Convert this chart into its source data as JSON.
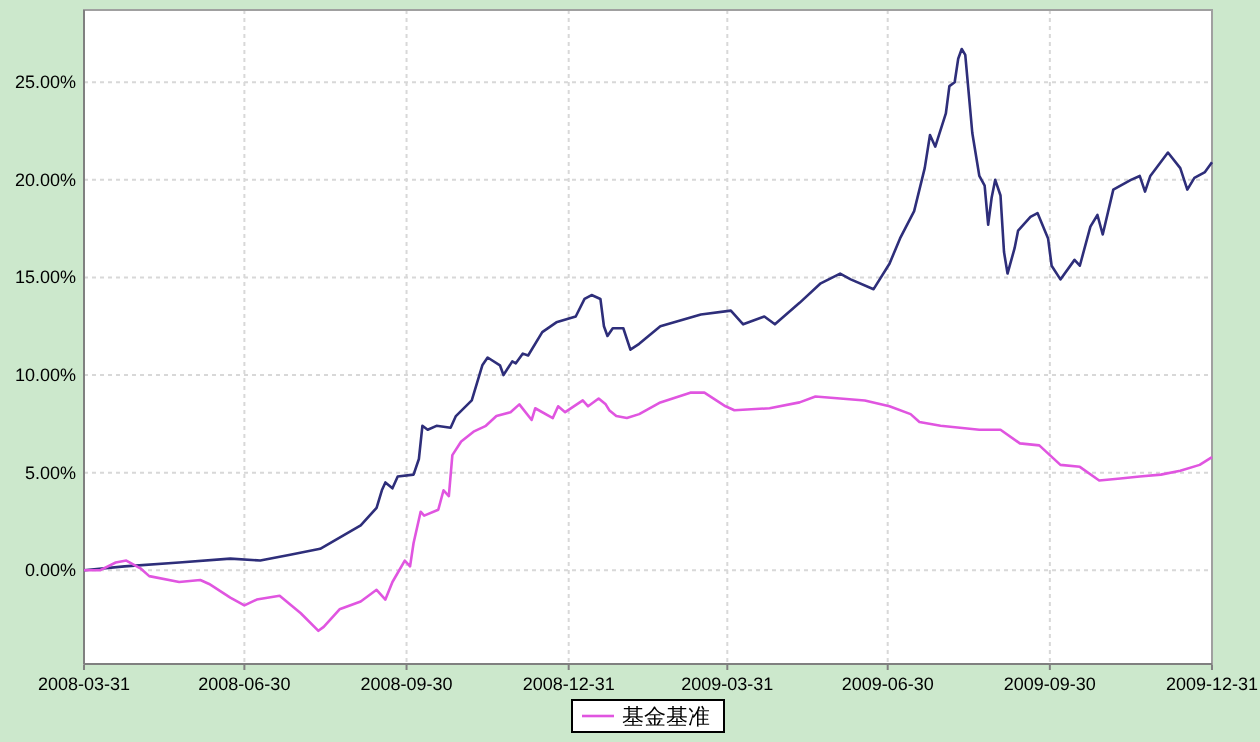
{
  "chart_data": {
    "type": "line",
    "xlim": [
      "2008-03-31",
      "2009-12-31"
    ],
    "ylim": [
      -4.8,
      28.7
    ],
    "xticks": [
      "2008-03-31",
      "2008-06-30",
      "2008-09-30",
      "2008-12-31",
      "2009-03-31",
      "2009-06-30",
      "2009-09-30",
      "2009-12-31"
    ],
    "yticks": [
      {
        "value": 0,
        "label": "0.00%"
      },
      {
        "value": 5,
        "label": "5.00%"
      },
      {
        "value": 10,
        "label": "10.00%"
      },
      {
        "value": 15,
        "label": "15.00%"
      },
      {
        "value": 20,
        "label": "20.00%"
      },
      {
        "value": 25,
        "label": "25.00%"
      }
    ],
    "grid": true,
    "legend": "bottom",
    "line_style": "solid",
    "marker": "none",
    "series": [
      {
        "color": "#2e2e7a",
        "x": [
          "2008-03-31",
          "2008-04-23",
          "2008-05-24",
          "2008-06-22",
          "2008-07-09",
          "2008-07-26",
          "2008-08-12",
          "2008-09-04",
          "2008-09-13",
          "2008-09-16",
          "2008-09-18",
          "2008-09-22",
          "2008-09-25",
          "2008-10-04",
          "2008-10-07",
          "2008-10-09",
          "2008-10-12",
          "2008-10-17",
          "2008-10-25",
          "2008-10-28",
          "2008-11-06",
          "2008-11-12",
          "2008-11-15",
          "2008-11-22",
          "2008-11-24",
          "2008-11-29",
          "2008-12-01",
          "2008-12-05",
          "2008-12-08",
          "2008-12-16",
          "2008-12-24",
          "2009-01-04",
          "2009-01-09",
          "2009-01-13",
          "2009-01-18",
          "2009-01-20",
          "2009-01-22",
          "2009-01-25",
          "2009-01-31",
          "2009-02-04",
          "2009-02-09",
          "2009-02-21",
          "2009-03-16",
          "2009-04-02",
          "2009-04-09",
          "2009-04-21",
          "2009-04-27",
          "2009-05-11",
          "2009-05-23",
          "2009-06-03",
          "2009-06-09",
          "2009-06-22",
          "2009-07-01",
          "2009-07-07",
          "2009-07-15",
          "2009-07-21",
          "2009-07-24",
          "2009-07-27",
          "2009-08-02",
          "2009-08-04",
          "2009-08-07",
          "2009-08-09",
          "2009-08-11",
          "2009-08-13",
          "2009-08-15",
          "2009-08-17",
          "2009-08-21",
          "2009-08-24",
          "2009-08-26",
          "2009-08-28",
          "2009-08-30",
          "2009-09-02",
          "2009-09-04",
          "2009-09-06",
          "2009-09-10",
          "2009-09-12",
          "2009-09-19",
          "2009-09-23",
          "2009-09-29",
          "2009-10-01",
          "2009-10-06",
          "2009-10-14",
          "2009-10-17",
          "2009-10-23",
          "2009-10-27",
          "2009-10-30",
          "2009-11-05",
          "2009-11-15",
          "2009-11-20",
          "2009-11-23",
          "2009-11-26",
          "2009-12-06",
          "2009-12-13",
          "2009-12-17",
          "2009-12-21",
          "2009-12-27",
          "2009-12-31"
        ],
        "values": [
          0.0,
          0.2,
          0.4,
          0.6,
          0.5,
          0.8,
          1.1,
          2.3,
          3.2,
          4.1,
          4.5,
          4.2,
          4.8,
          4.9,
          5.7,
          7.4,
          7.2,
          7.4,
          7.3,
          7.9,
          8.7,
          10.5,
          10.9,
          10.5,
          10.0,
          10.7,
          10.6,
          11.1,
          11.0,
          12.2,
          12.7,
          13.0,
          13.9,
          14.1,
          13.9,
          12.5,
          12.0,
          12.4,
          12.4,
          11.3,
          11.6,
          12.5,
          13.1,
          13.3,
          12.6,
          13.0,
          12.6,
          13.7,
          14.7,
          15.2,
          14.9,
          14.4,
          15.7,
          17.0,
          18.4,
          20.6,
          22.3,
          21.7,
          23.4,
          24.8,
          25.0,
          26.2,
          26.7,
          26.4,
          24.4,
          22.4,
          20.2,
          19.7,
          17.7,
          19.1,
          20.0,
          19.2,
          16.3,
          15.2,
          16.5,
          17.4,
          18.1,
          18.3,
          17.0,
          15.6,
          14.9,
          15.9,
          15.6,
          17.6,
          18.2,
          17.2,
          19.5,
          20.0,
          20.2,
          19.4,
          20.2,
          21.4,
          20.6,
          19.5,
          20.1,
          20.4,
          20.9
        ]
      },
      {
        "name": "基金基准",
        "color": "#e055e0",
        "x": [
          "2008-03-31",
          "2008-04-09",
          "2008-04-18",
          "2008-04-24",
          "2008-05-02",
          "2008-05-07",
          "2008-05-24",
          "2008-06-05",
          "2008-06-10",
          "2008-06-22",
          "2008-06-30",
          "2008-07-07",
          "2008-07-20",
          "2008-08-01",
          "2008-08-11",
          "2008-08-14",
          "2008-08-23",
          "2008-09-04",
          "2008-09-13",
          "2008-09-18",
          "2008-09-22",
          "2008-09-29",
          "2008-10-02",
          "2008-10-04",
          "2008-10-08",
          "2008-10-10",
          "2008-10-18",
          "2008-10-21",
          "2008-10-24",
          "2008-10-26",
          "2008-10-31",
          "2008-11-07",
          "2008-11-14",
          "2008-11-20",
          "2008-11-28",
          "2008-12-03",
          "2008-12-10",
          "2008-12-12",
          "2008-12-22",
          "2008-12-25",
          "2008-12-29",
          "2009-01-08",
          "2009-01-11",
          "2009-01-17",
          "2009-01-21",
          "2009-01-23",
          "2009-01-27",
          "2009-02-02",
          "2009-02-09",
          "2009-02-21",
          "2009-03-10",
          "2009-03-18",
          "2009-03-30",
          "2009-04-04",
          "2009-04-24",
          "2009-05-11",
          "2009-05-20",
          "2009-06-03",
          "2009-06-17",
          "2009-07-01",
          "2009-07-13",
          "2009-07-18",
          "2009-07-30",
          "2009-08-21",
          "2009-09-02",
          "2009-09-13",
          "2009-09-24",
          "2009-10-06",
          "2009-10-17",
          "2009-10-28",
          "2009-11-09",
          "2009-11-20",
          "2009-12-02",
          "2009-12-13",
          "2009-12-24",
          "2009-12-31"
        ],
        "values": [
          0.0,
          0.0,
          0.4,
          0.5,
          0.1,
          -0.3,
          -0.6,
          -0.5,
          -0.7,
          -1.4,
          -1.8,
          -1.5,
          -1.3,
          -2.2,
          -3.1,
          -2.9,
          -2.0,
          -1.6,
          -1.0,
          -1.5,
          -0.6,
          0.5,
          0.2,
          1.4,
          3.0,
          2.8,
          3.1,
          4.1,
          3.8,
          5.9,
          6.6,
          7.1,
          7.4,
          7.9,
          8.1,
          8.5,
          7.7,
          8.3,
          7.8,
          8.4,
          8.1,
          8.7,
          8.4,
          8.8,
          8.5,
          8.2,
          7.9,
          7.8,
          8.0,
          8.6,
          9.1,
          9.1,
          8.4,
          8.2,
          8.3,
          8.6,
          8.9,
          8.8,
          8.7,
          8.4,
          8.0,
          7.6,
          7.4,
          7.2,
          7.2,
          6.5,
          6.4,
          5.4,
          5.3,
          4.6,
          4.7,
          4.8,
          4.9,
          5.1,
          5.4,
          5.8
        ]
      }
    ]
  }
}
